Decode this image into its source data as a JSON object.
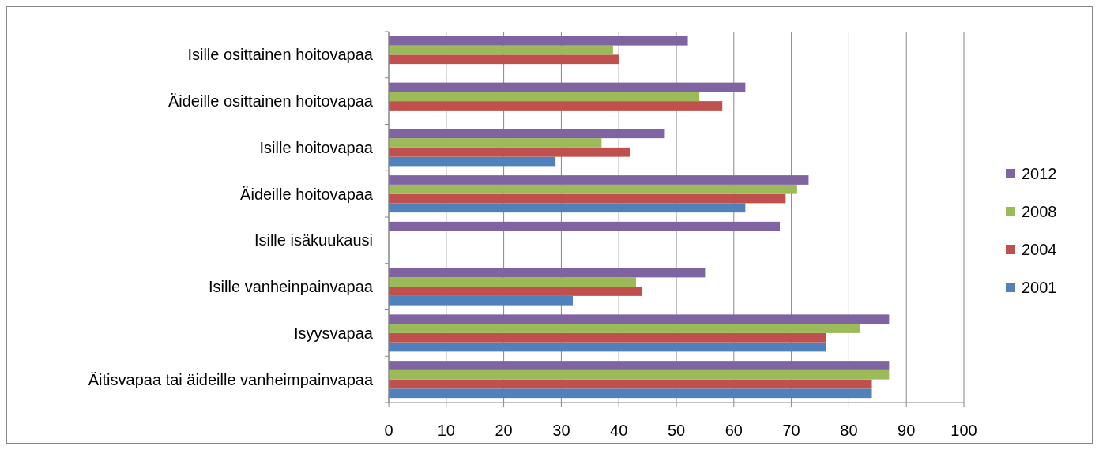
{
  "chart_data": {
    "type": "bar",
    "orientation": "horizontal",
    "categories": [
      "Isille osittainen hoitovapaa",
      "Äideille osittainen hoitovapaa",
      "Isille hoitovapaa",
      "Äideille hoitovapaa",
      "Isille isäkuukausi",
      "Isille vanheinpainvapaa",
      "Isyysvapaa",
      "Äitisvapaa tai äideille vanheimpainvapaa"
    ],
    "series": [
      {
        "name": "2001",
        "color": "#4f81bd",
        "values": [
          null,
          null,
          29,
          62,
          null,
          32,
          76,
          84
        ]
      },
      {
        "name": "2004",
        "color": "#c0504d",
        "values": [
          40,
          58,
          42,
          69,
          null,
          44,
          76,
          84
        ]
      },
      {
        "name": "2008",
        "color": "#9bbb59",
        "values": [
          39,
          54,
          37,
          71,
          null,
          43,
          82,
          87
        ]
      },
      {
        "name": "2012",
        "color": "#8064a2",
        "values": [
          52,
          62,
          48,
          73,
          68,
          55,
          87,
          87
        ]
      }
    ],
    "xlim": [
      0,
      100
    ],
    "xticks": [
      0,
      10,
      20,
      30,
      40,
      50,
      60,
      70,
      80,
      90,
      100
    ],
    "grid": "x",
    "legend": "right"
  }
}
